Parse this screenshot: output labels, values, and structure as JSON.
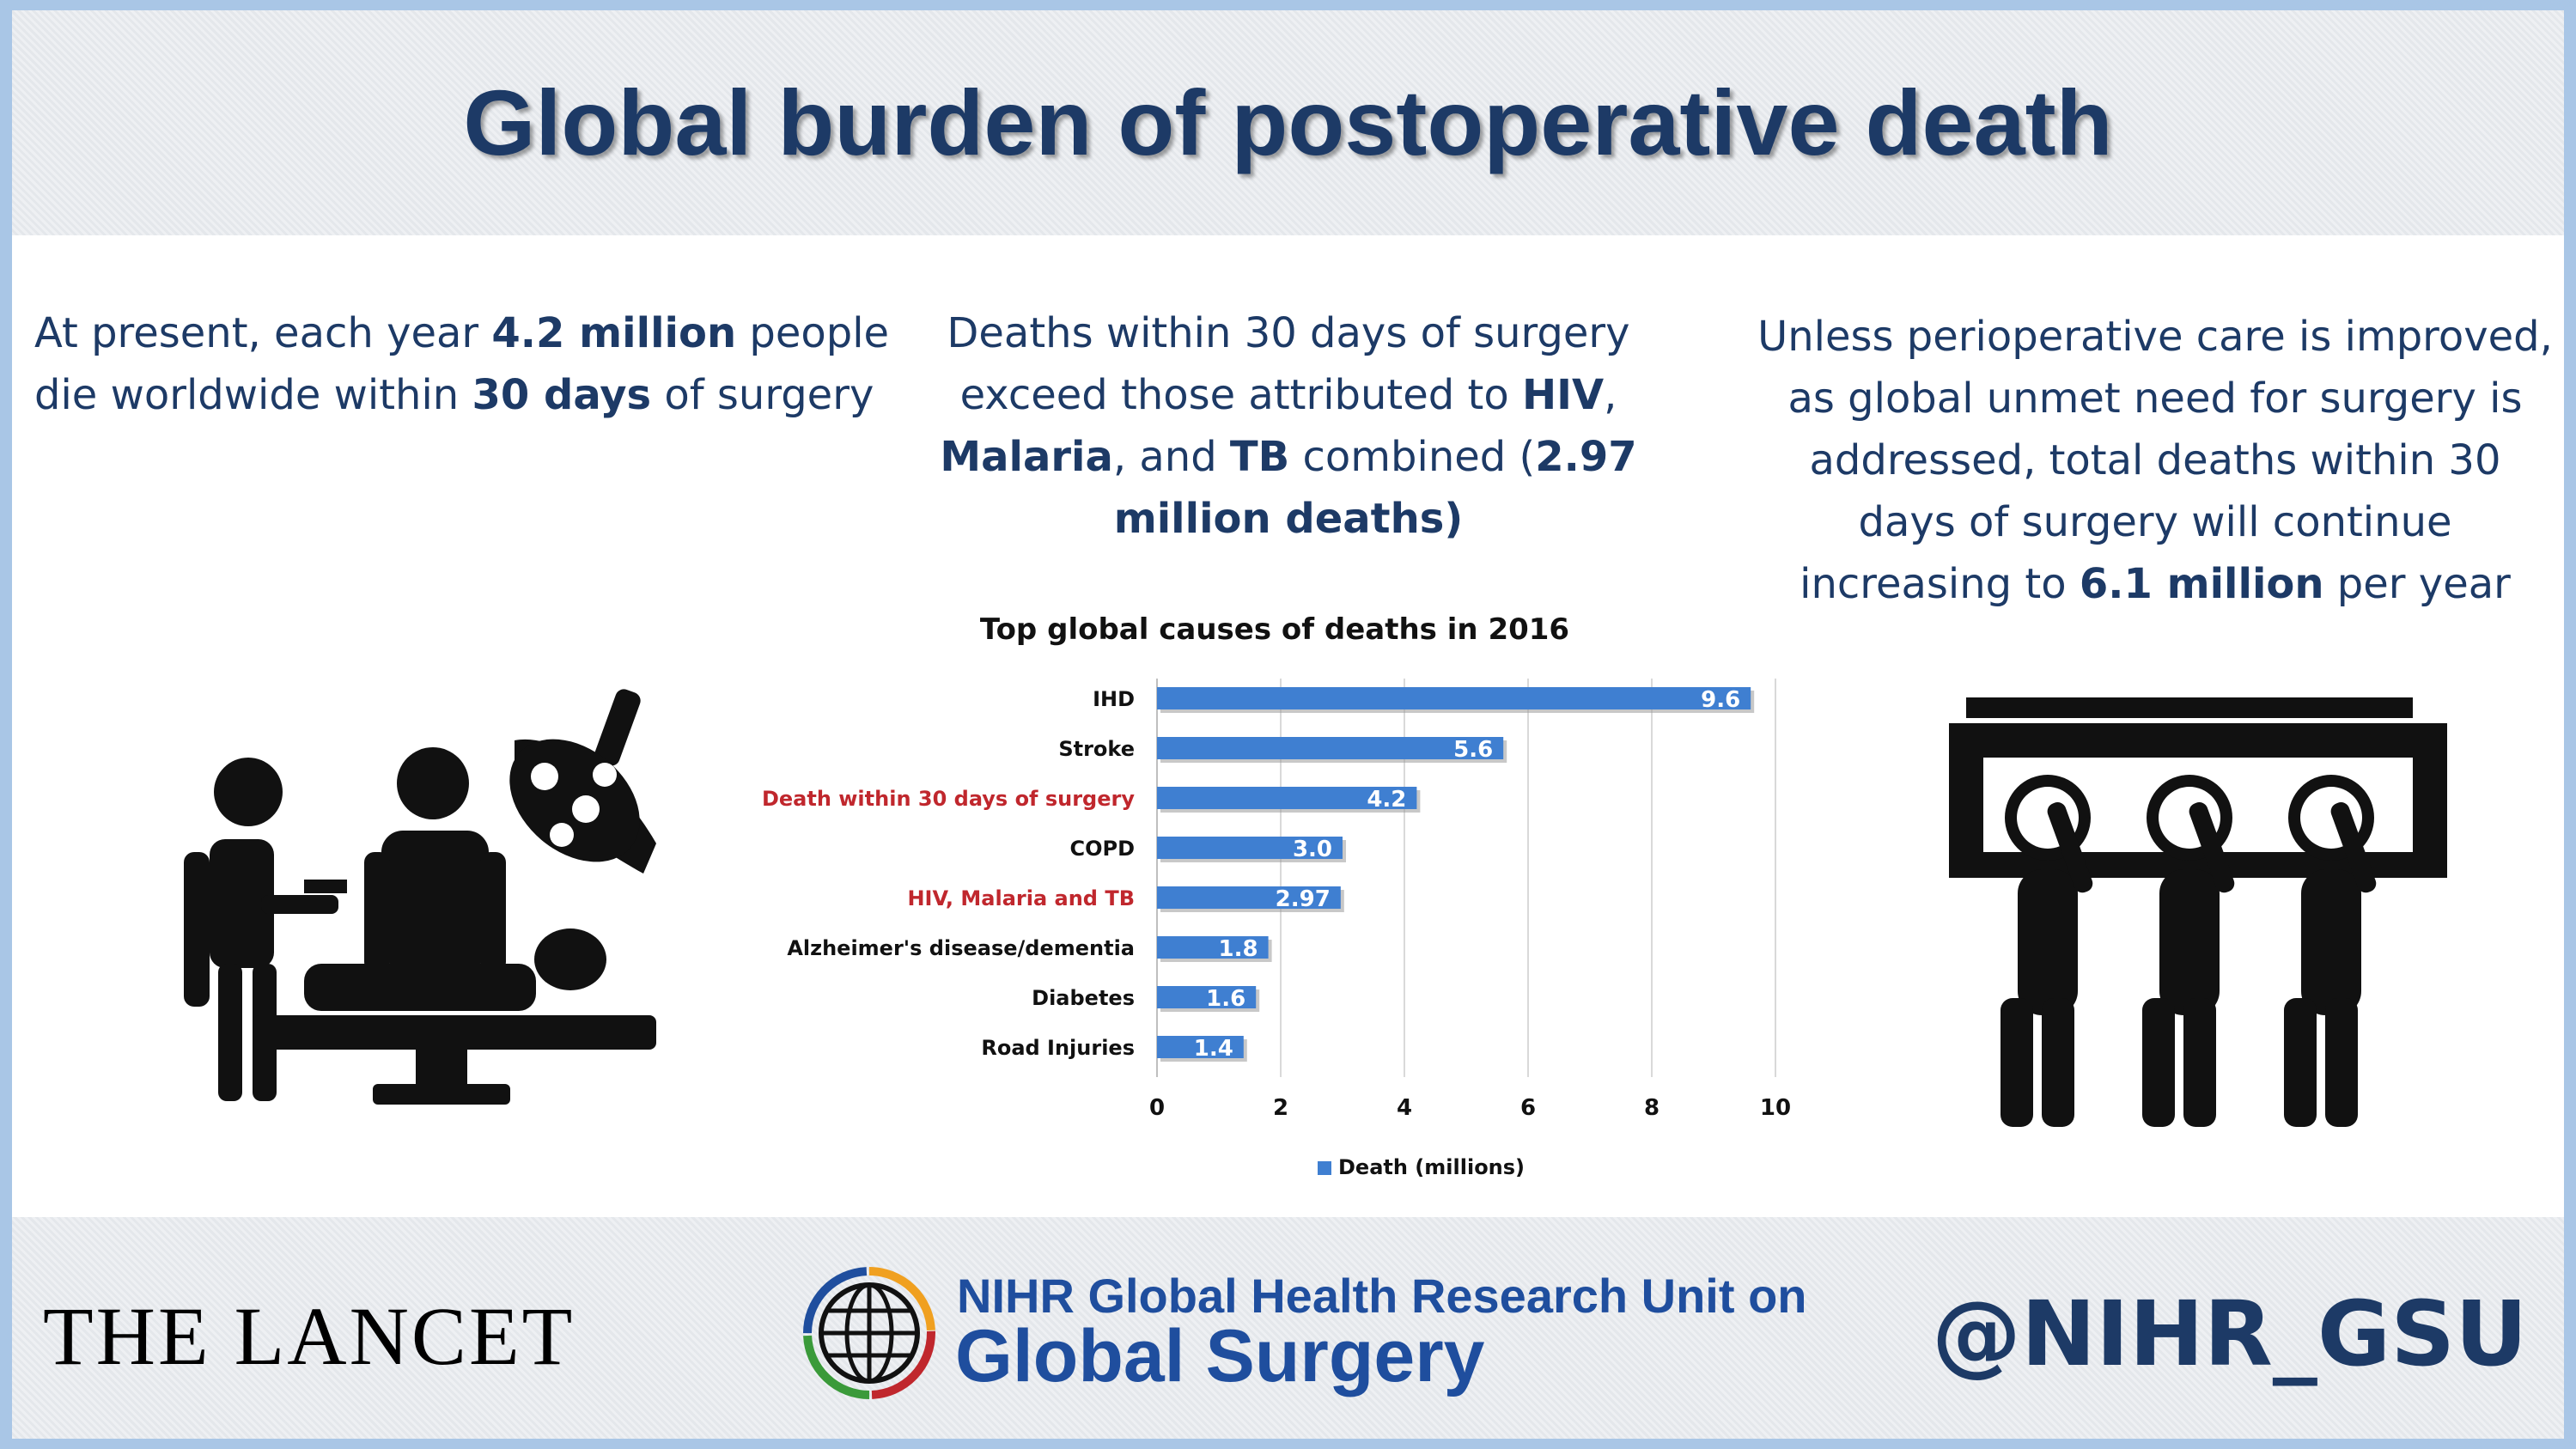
{
  "title": "Global burden of postoperative death",
  "left_text": {
    "t1": "At present, each year ",
    "b1": "4.2 million",
    "t2": " people die worldwide within ",
    "b2": "30 days",
    "t3": " of surgery"
  },
  "center_text": {
    "t1": "Deaths within 30 days of surgery exceed those attributed to ",
    "b1": "HIV",
    "t2": ", ",
    "b2": "Malaria",
    "t3": ", and ",
    "b3": "TB",
    "t4": " combined (",
    "b4": "2.97 million deaths)"
  },
  "right_text": {
    "t1": "Unless perioperative care is improved, as global unmet need for surgery is addressed, total deaths within 30 days of surgery will continue increasing to ",
    "b1": "6.1 million",
    "t2": " per year"
  },
  "footer": {
    "lancet": "THE LANCET",
    "nihr_line1": "NIHR Global Health Research Unit on",
    "nihr_line2": "Global Surgery",
    "handle": "@NIHR_GSU"
  },
  "icons": {
    "left": "surgery-team-icon",
    "right": "pallbearers-coffin-icon",
    "logo": "globe-logo-icon"
  },
  "colors": {
    "title": "#1d3a66",
    "bar": "#3f7fd1",
    "highlight": "#c0272d",
    "brand": "#1f4e9e"
  },
  "chart_data": {
    "type": "bar",
    "orientation": "horizontal",
    "title": "Top global causes of deaths in 2016",
    "categories": [
      "IHD",
      "Stroke",
      "Death within 30 days of surgery",
      "COPD",
      "HIV, Malaria and TB",
      "Alzheimer's disease/dementia",
      "Diabetes",
      "Road Injuries"
    ],
    "values": [
      9.6,
      5.6,
      4.2,
      3.0,
      2.97,
      1.8,
      1.6,
      1.4
    ],
    "value_labels": [
      "9.6",
      "5.6",
      "4.2",
      "3.0",
      "2.97",
      "1.8",
      "1.6",
      "1.4"
    ],
    "highlighted": [
      false,
      false,
      true,
      false,
      true,
      false,
      false,
      false
    ],
    "xlim": [
      0,
      10
    ],
    "xticks": [
      "0",
      "2",
      "4",
      "6",
      "8",
      "10"
    ],
    "series": [
      {
        "name": "Death (millions)",
        "values": [
          9.6,
          5.6,
          4.2,
          3.0,
          2.97,
          1.8,
          1.6,
          1.4
        ]
      }
    ],
    "grid": true,
    "legend": "bottom"
  }
}
